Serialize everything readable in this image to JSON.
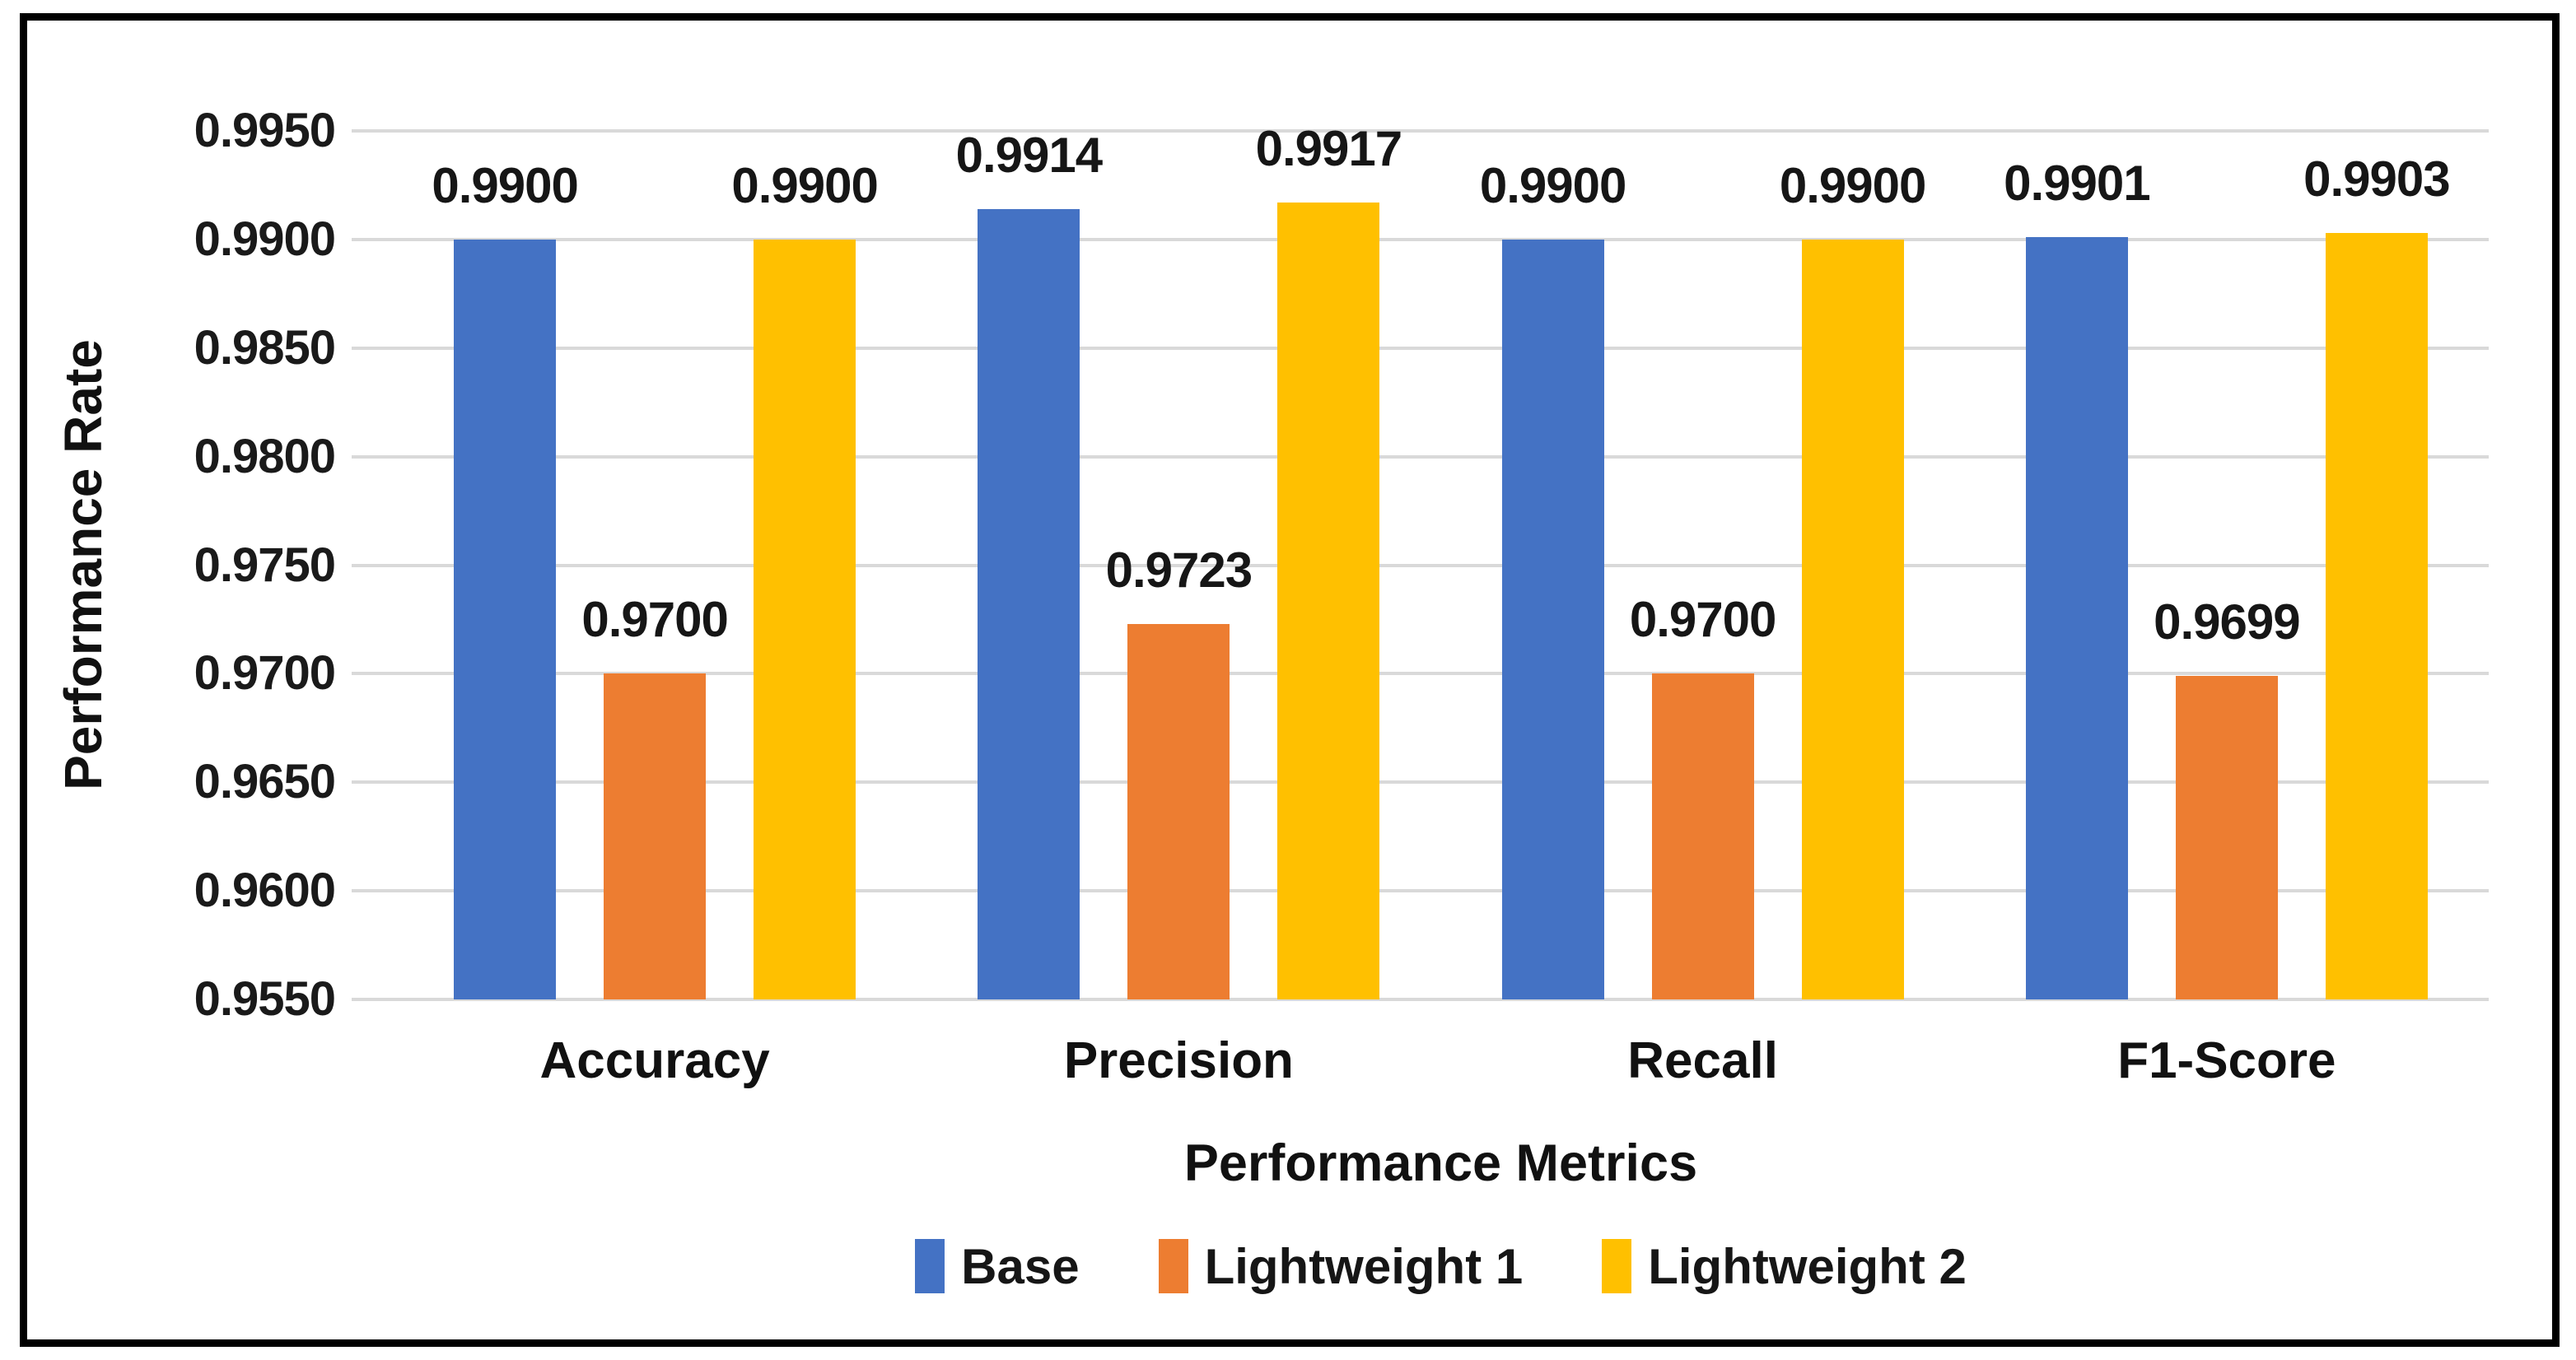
{
  "chart_data": {
    "type": "bar",
    "title": "",
    "xlabel": "Performance Metrics",
    "ylabel": "Performance Rate",
    "categories": [
      "Accuracy",
      "Precision",
      "Recall",
      "F1-Score"
    ],
    "series": [
      {
        "name": "Base",
        "color": "#4472C4",
        "values": [
          0.99,
          0.9914,
          0.99,
          0.9901
        ],
        "labels": [
          "0.9900",
          "0.9914",
          "0.9900",
          "0.9901"
        ]
      },
      {
        "name": "Lightweight 1",
        "color": "#ED7D31",
        "values": [
          0.97,
          0.9723,
          0.97,
          0.9699
        ],
        "labels": [
          "0.9700",
          "0.9723",
          "0.9700",
          "0.9699"
        ]
      },
      {
        "name": "Lightweight 2",
        "color": "#FFC000",
        "values": [
          0.99,
          0.9917,
          0.99,
          0.9903
        ],
        "labels": [
          "0.9900",
          "0.9917",
          "0.9900",
          "0.9903"
        ]
      }
    ],
    "ylim": [
      0.955,
      0.995
    ],
    "y_tick_step": 0.005,
    "y_ticks": [
      "0.9950",
      "0.9900",
      "0.9850",
      "0.9800",
      "0.9750",
      "0.9700",
      "0.9650",
      "0.9600",
      "0.9550"
    ],
    "grid": true,
    "gridline_color": "#D9D9D9",
    "legend_position": "bottom",
    "text_color": "#1a1a1a",
    "frame_border_color": "#000000",
    "background_color": "#FFFFFF"
  }
}
